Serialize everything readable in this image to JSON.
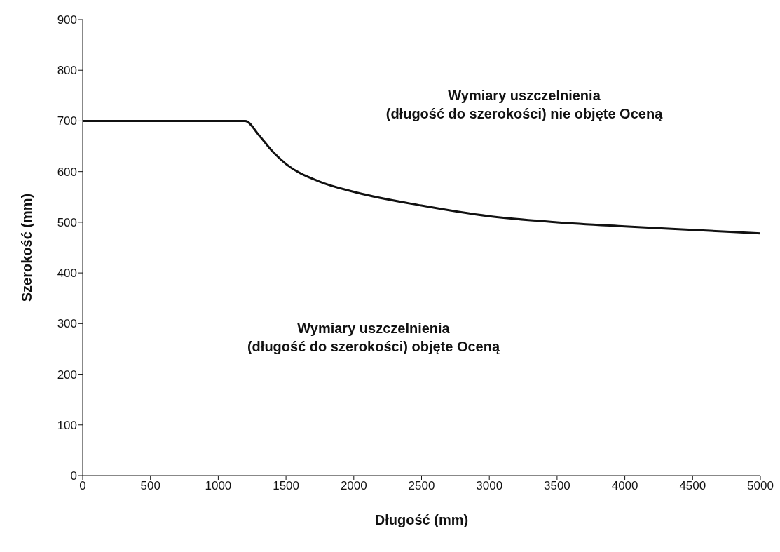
{
  "chart_data": {
    "type": "line",
    "xlabel": "Długość (mm)",
    "ylabel": "Szerokość (mm)",
    "x": [
      0,
      1200,
      1300,
      1400,
      1500,
      1750,
      2000,
      2500,
      3000,
      3500,
      4000,
      4500,
      5000
    ],
    "series": [
      {
        "color": "#111111",
        "values": [
          700,
          700,
          672,
          640,
          615,
          580,
          560,
          533,
          512,
          500,
          492,
          485,
          478
        ]
      }
    ],
    "xlim": [
      0,
      5000
    ],
    "xticks": [
      0,
      500,
      1000,
      1500,
      2000,
      2500,
      3000,
      3500,
      4000,
      4500,
      5000
    ],
    "ylim": [
      0,
      900
    ],
    "yticks": [
      0,
      100,
      200,
      300,
      400,
      500,
      600,
      700,
      800,
      900
    ],
    "grid": false,
    "legend": false,
    "marker": "none",
    "line_style": "solid",
    "annotations": [
      "Wymiary uszczelnienia\n(długość do szerokości) nie objęte Oceną",
      "Wymiary uszczelnienia\n(długość do szerokości) objęte Oceną"
    ]
  }
}
